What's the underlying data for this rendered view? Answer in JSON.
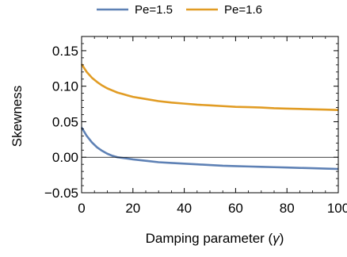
{
  "chart_data": {
    "type": "line",
    "title": "",
    "xlabel_text": "Damping parameter (",
    "xlabel_symbol": "γ",
    "xlabel_close": ")",
    "ylabel": "Skewness",
    "xlim": [
      0,
      100
    ],
    "ylim": [
      -0.05,
      0.17
    ],
    "xticks": [
      0,
      20,
      40,
      60,
      80,
      100
    ],
    "xtick_labels": [
      "0",
      "20",
      "40",
      "60",
      "80",
      "100"
    ],
    "yticks": [
      -0.05,
      0.0,
      0.05,
      0.1,
      0.15
    ],
    "ytick_labels": [
      "−0.05",
      "0.00",
      "0.05",
      "0.10",
      "0.15"
    ],
    "zero_line": true,
    "legend_position": "top-center",
    "series": [
      {
        "name": "Pe=1.5",
        "color": "#5e81b5",
        "x": [
          0,
          2,
          4,
          6,
          8,
          10,
          12,
          14,
          16,
          18,
          20,
          25,
          30,
          35,
          40,
          45,
          50,
          55,
          60,
          65,
          70,
          75,
          80,
          85,
          90,
          95,
          100
        ],
        "y": [
          0.042,
          0.03,
          0.021,
          0.014,
          0.009,
          0.005,
          0.002,
          0.0,
          -0.001,
          -0.002,
          -0.003,
          -0.005,
          -0.007,
          -0.008,
          -0.009,
          -0.01,
          -0.011,
          -0.012,
          -0.0125,
          -0.013,
          -0.0135,
          -0.014,
          -0.0145,
          -0.015,
          -0.0155,
          -0.016,
          -0.0165
        ]
      },
      {
        "name": "Pe=1.6",
        "color": "#e19c24",
        "x": [
          0,
          2,
          4,
          6,
          8,
          10,
          12,
          14,
          16,
          18,
          20,
          25,
          30,
          35,
          40,
          45,
          50,
          55,
          60,
          65,
          70,
          75,
          80,
          85,
          90,
          95,
          100
        ],
        "y": [
          0.131,
          0.12,
          0.112,
          0.106,
          0.101,
          0.097,
          0.094,
          0.091,
          0.089,
          0.087,
          0.085,
          0.082,
          0.079,
          0.077,
          0.0755,
          0.074,
          0.073,
          0.072,
          0.071,
          0.0705,
          0.07,
          0.069,
          0.0685,
          0.068,
          0.0675,
          0.067,
          0.0665
        ]
      }
    ]
  }
}
